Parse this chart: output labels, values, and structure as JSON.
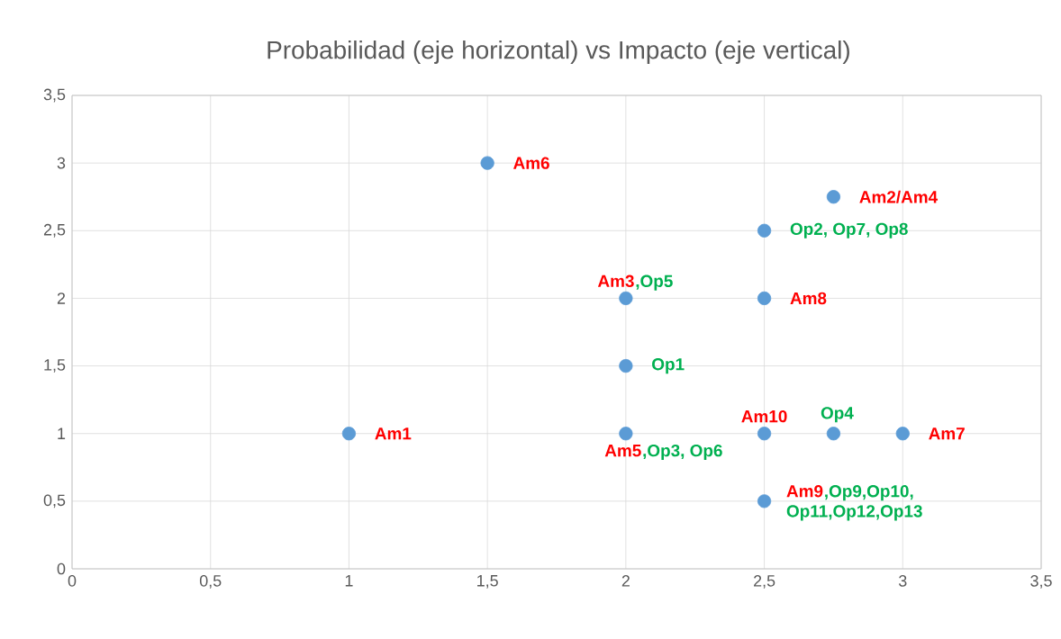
{
  "chart_data": {
    "type": "scatter",
    "title": "Probabilidad (eje horizontal) vs Impacto (eje vertical)",
    "x": [
      1,
      1.5,
      2,
      2,
      2,
      2.5,
      2.5,
      2.5,
      2.5,
      2.75,
      2.75,
      3
    ],
    "values": [
      1,
      3,
      2,
      1.5,
      1,
      2.5,
      2,
      1,
      0.5,
      2.75,
      1,
      1
    ],
    "color": "#5b9bd5",
    "grid": true,
    "xlim": [
      0,
      3.5
    ],
    "ylim": [
      0,
      3.5
    ],
    "xticks": [
      0,
      {
        "value": 0.5,
        "label": "0,5"
      },
      1,
      {
        "value": 1.5,
        "label": "1,5"
      },
      2,
      {
        "value": 2.5,
        "label": "2,5"
      },
      3,
      {
        "value": 3.5,
        "label": "3,5"
      }
    ],
    "yticks": [
      0,
      {
        "value": 0.5,
        "label": "0,5"
      },
      1,
      {
        "value": 1.5,
        "label": "1,5"
      },
      2,
      {
        "value": 2.5,
        "label": "2,5"
      },
      3,
      {
        "value": 3.5,
        "label": "3,5"
      }
    ],
    "annotations": [
      {
        "text": "Am6",
        "x": 1.5,
        "y": 3
      },
      {
        "text": "Am2/Am4",
        "x": 2.75,
        "y": 2.75
      },
      {
        "text": "Op2, Op7, Op8",
        "x": 2.5,
        "y": 2.5
      },
      {
        "text": "Am3",
        "x": 2,
        "y": 2
      },
      ",Op5",
      {
        "text": "Am8",
        "x": 2.5,
        "y": 2
      },
      {
        "text": "Op1",
        "x": 2,
        "y": 1.5
      },
      {
        "text": "Am10",
        "x": 2.5,
        "y": 1
      },
      {
        "text": "Op4",
        "x": 2.75,
        "y": 1
      },
      {
        "text": "Am1",
        "x": 1,
        "y": 1
      },
      {
        "text": "Am7",
        "x": 3,
        "y": 1
      },
      {
        "text": "Am5",
        "x": 2,
        "y": 1
      },
      ",Op3, Op6",
      {
        "text": "Am9",
        "x": 2.5,
        "y": 0.5
      },
      ",Op9,Op10,",
      "Op11,Op12,Op13"
    ]
  }
}
